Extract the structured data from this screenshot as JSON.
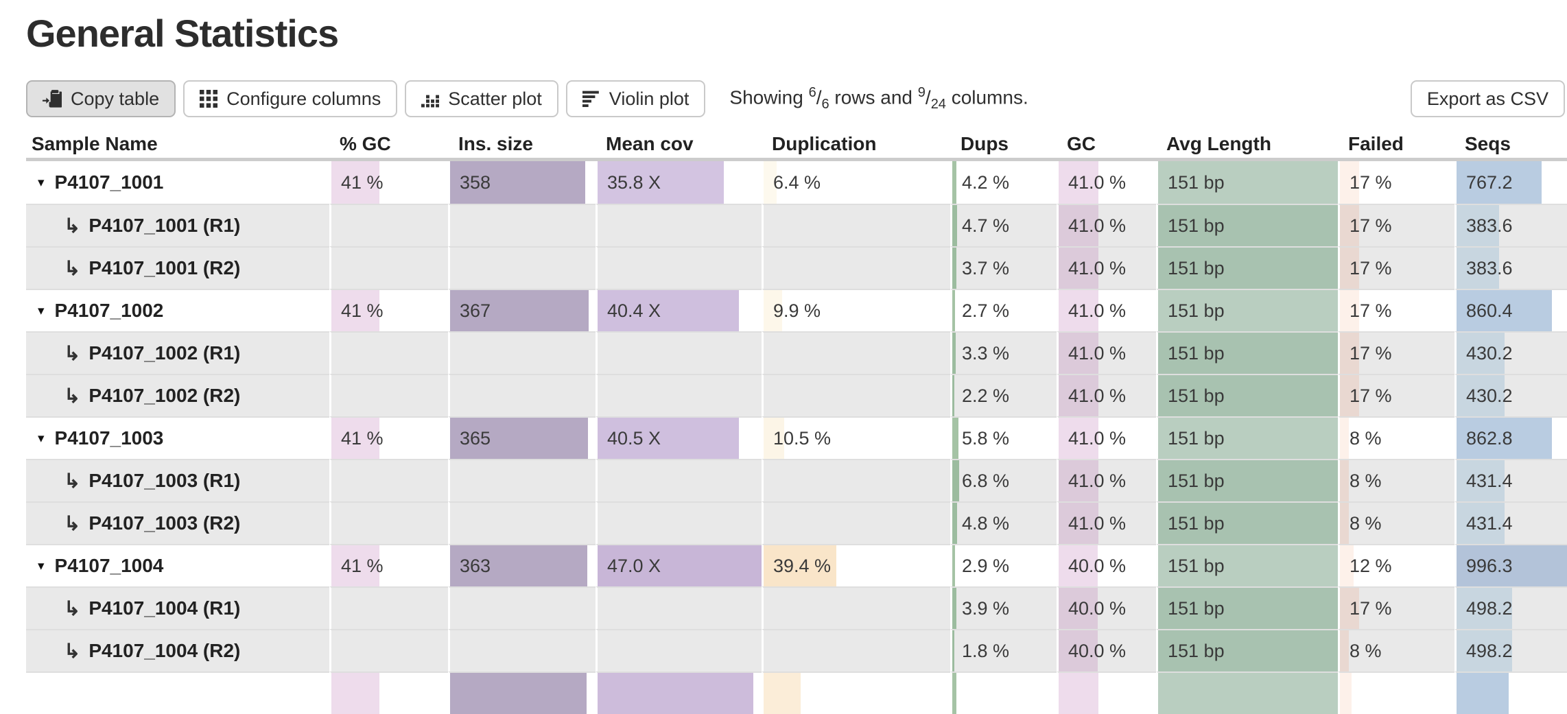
{
  "title": "General Statistics",
  "toolbar": {
    "copy_table": "Copy table",
    "configure_columns": "Configure columns",
    "scatter_plot": "Scatter plot",
    "violin_plot": "Violin plot",
    "export_csv": "Export as CSV",
    "showing": {
      "prefix": "Showing ",
      "rows_shown": "6",
      "rows_total": "6",
      "middle": " rows and ",
      "cols_shown": "9",
      "cols_total": "24",
      "suffix": " columns."
    }
  },
  "columns": [
    {
      "id": "sample",
      "label": "Sample Name"
    },
    {
      "id": "pct_gc",
      "label": "% GC"
    },
    {
      "id": "ins_size",
      "label": "Ins. size"
    },
    {
      "id": "mean_cov",
      "label": "Mean cov"
    },
    {
      "id": "duplication",
      "label": "Duplication"
    },
    {
      "id": "dups",
      "label": "Dups"
    },
    {
      "id": "gc",
      "label": "GC"
    },
    {
      "id": "avg_length",
      "label": "Avg Length"
    },
    {
      "id": "failed",
      "label": "Failed"
    },
    {
      "id": "seqs",
      "label": "Seqs"
    }
  ],
  "rows": [
    {
      "type": "main",
      "sample": "P4107_1001",
      "cells": {
        "pct_gc": {
          "text": "41 %",
          "bar": 41,
          "color": "#eedcec"
        },
        "ins_size": {
          "text": "358",
          "bar": 93,
          "color": "#b5a9c3"
        },
        "mean_cov": {
          "text": "35.8 X",
          "bar": 77,
          "color": "#d3c4e1"
        },
        "duplication": {
          "text": "6.4 %",
          "bar": 7,
          "color": "#fdf9ee"
        },
        "dups": {
          "text": "4.2 %",
          "bar": 4.2,
          "color": "#a5c3a5"
        },
        "gc": {
          "text": "41.0 %",
          "bar": 41,
          "color": "#eedcec"
        },
        "avg_length": {
          "text": "151 bp",
          "bar": 100,
          "color": "#b9cec0"
        },
        "failed": {
          "text": "17 %",
          "bar": 17,
          "color": "#fdf1ea"
        },
        "seqs": {
          "text": "767.2",
          "bar": 77,
          "color": "#b9cce1"
        }
      }
    },
    {
      "type": "sub",
      "sample": "P4107_1001 (R1)",
      "cells": {
        "dups": {
          "text": "4.7 %",
          "bar": 4.7,
          "color": "#9cbc9f"
        },
        "gc": {
          "text": "41.0 %",
          "bar": 41,
          "color": "#dccada"
        },
        "avg_length": {
          "text": "151 bp",
          "bar": 100,
          "color": "#a8c2b0"
        },
        "failed": {
          "text": "17 %",
          "bar": 17,
          "color": "#e9d8d1"
        },
        "seqs": {
          "text": "383.6",
          "bar": 38.5,
          "color": "#c8d6e0"
        }
      }
    },
    {
      "type": "sub",
      "sample": "P4107_1001 (R2)",
      "cells": {
        "dups": {
          "text": "3.7 %",
          "bar": 3.7,
          "color": "#9cbc9f"
        },
        "gc": {
          "text": "41.0 %",
          "bar": 41,
          "color": "#dccada"
        },
        "avg_length": {
          "text": "151 bp",
          "bar": 100,
          "color": "#a8c2b0"
        },
        "failed": {
          "text": "17 %",
          "bar": 17,
          "color": "#e9d8d1"
        },
        "seqs": {
          "text": "383.6",
          "bar": 38.5,
          "color": "#c8d6e0"
        }
      }
    },
    {
      "type": "main",
      "sample": "P4107_1002",
      "cells": {
        "pct_gc": {
          "text": "41 %",
          "bar": 41,
          "color": "#eedcec"
        },
        "ins_size": {
          "text": "367",
          "bar": 95.3,
          "color": "#b5a9c3"
        },
        "mean_cov": {
          "text": "40.4 X",
          "bar": 86,
          "color": "#cfbfde"
        },
        "duplication": {
          "text": "9.9 %",
          "bar": 10,
          "color": "#fdf7ea"
        },
        "dups": {
          "text": "2.7 %",
          "bar": 2.7,
          "color": "#a5c3a5"
        },
        "gc": {
          "text": "41.0 %",
          "bar": 41,
          "color": "#eedcec"
        },
        "avg_length": {
          "text": "151 bp",
          "bar": 100,
          "color": "#b9cec0"
        },
        "failed": {
          "text": "17 %",
          "bar": 17,
          "color": "#fdf1ea"
        },
        "seqs": {
          "text": "860.4",
          "bar": 86.3,
          "color": "#b9cce1"
        }
      }
    },
    {
      "type": "sub",
      "sample": "P4107_1002 (R1)",
      "cells": {
        "dups": {
          "text": "3.3 %",
          "bar": 3.3,
          "color": "#9cbc9f"
        },
        "gc": {
          "text": "41.0 %",
          "bar": 41,
          "color": "#dccada"
        },
        "avg_length": {
          "text": "151 bp",
          "bar": 100,
          "color": "#a8c2b0"
        },
        "failed": {
          "text": "17 %",
          "bar": 17,
          "color": "#e9d8d1"
        },
        "seqs": {
          "text": "430.2",
          "bar": 43.2,
          "color": "#c8d6e0"
        }
      }
    },
    {
      "type": "sub",
      "sample": "P4107_1002 (R2)",
      "cells": {
        "dups": {
          "text": "2.2 %",
          "bar": 2.2,
          "color": "#9cbc9f"
        },
        "gc": {
          "text": "41.0 %",
          "bar": 41,
          "color": "#dccada"
        },
        "avg_length": {
          "text": "151 bp",
          "bar": 100,
          "color": "#a8c2b0"
        },
        "failed": {
          "text": "17 %",
          "bar": 17,
          "color": "#e9d8d1"
        },
        "seqs": {
          "text": "430.2",
          "bar": 43.2,
          "color": "#c8d6e0"
        }
      }
    },
    {
      "type": "main",
      "sample": "P4107_1003",
      "cells": {
        "pct_gc": {
          "text": "41 %",
          "bar": 41,
          "color": "#eedcec"
        },
        "ins_size": {
          "text": "365",
          "bar": 94.8,
          "color": "#b5a9c3"
        },
        "mean_cov": {
          "text": "40.5 X",
          "bar": 86,
          "color": "#cfbfde"
        },
        "duplication": {
          "text": "10.5 %",
          "bar": 11,
          "color": "#fcf5e7"
        },
        "dups": {
          "text": "5.8 %",
          "bar": 5.8,
          "color": "#a5c3a5"
        },
        "gc": {
          "text": "41.0 %",
          "bar": 41,
          "color": "#eedcec"
        },
        "avg_length": {
          "text": "151 bp",
          "bar": 100,
          "color": "#b9cec0"
        },
        "failed": {
          "text": "8 %",
          "bar": 8,
          "color": "#fdf1ea"
        },
        "seqs": {
          "text": "862.8",
          "bar": 86.6,
          "color": "#b9cce1"
        }
      }
    },
    {
      "type": "sub",
      "sample": "P4107_1003 (R1)",
      "cells": {
        "dups": {
          "text": "6.8 %",
          "bar": 6.8,
          "color": "#9cbc9f"
        },
        "gc": {
          "text": "41.0 %",
          "bar": 41,
          "color": "#dccada"
        },
        "avg_length": {
          "text": "151 bp",
          "bar": 100,
          "color": "#a8c2b0"
        },
        "failed": {
          "text": "8 %",
          "bar": 8,
          "color": "#e9d8d1"
        },
        "seqs": {
          "text": "431.4",
          "bar": 43.3,
          "color": "#c8d6e0"
        }
      }
    },
    {
      "type": "sub",
      "sample": "P4107_1003 (R2)",
      "cells": {
        "dups": {
          "text": "4.8 %",
          "bar": 4.8,
          "color": "#9cbc9f"
        },
        "gc": {
          "text": "41.0 %",
          "bar": 41,
          "color": "#dccada"
        },
        "avg_length": {
          "text": "151 bp",
          "bar": 100,
          "color": "#a8c2b0"
        },
        "failed": {
          "text": "8 %",
          "bar": 8,
          "color": "#e9d8d1"
        },
        "seqs": {
          "text": "431.4",
          "bar": 43.3,
          "color": "#c8d6e0"
        }
      }
    },
    {
      "type": "main",
      "sample": "P4107_1004",
      "cells": {
        "pct_gc": {
          "text": "41 %",
          "bar": 41,
          "color": "#eedcec"
        },
        "ins_size": {
          "text": "363",
          "bar": 94.3,
          "color": "#b5a9c3"
        },
        "mean_cov": {
          "text": "47.0 X",
          "bar": 100,
          "color": "#c8b6d7"
        },
        "duplication": {
          "text": "39.4 %",
          "bar": 39,
          "color": "#f9e5c9"
        },
        "dups": {
          "text": "2.9 %",
          "bar": 2.9,
          "color": "#a5c3a5"
        },
        "gc": {
          "text": "40.0 %",
          "bar": 40,
          "color": "#eedcec"
        },
        "avg_length": {
          "text": "151 bp",
          "bar": 100,
          "color": "#b9cec0"
        },
        "failed": {
          "text": "12 %",
          "bar": 12,
          "color": "#fdf1ea"
        },
        "seqs": {
          "text": "996.3",
          "bar": 100,
          "color": "#b3c3d9"
        }
      }
    },
    {
      "type": "sub",
      "sample": "P4107_1004 (R1)",
      "cells": {
        "dups": {
          "text": "3.9 %",
          "bar": 3.9,
          "color": "#9cbc9f"
        },
        "gc": {
          "text": "40.0 %",
          "bar": 40,
          "color": "#dccada"
        },
        "avg_length": {
          "text": "151 bp",
          "bar": 100,
          "color": "#a8c2b0"
        },
        "failed": {
          "text": "17 %",
          "bar": 17,
          "color": "#e9d8d1"
        },
        "seqs": {
          "text": "498.2",
          "bar": 50,
          "color": "#c8d6e0"
        }
      }
    },
    {
      "type": "sub",
      "sample": "P4107_1004 (R2)",
      "cells": {
        "dups": {
          "text": "1.8 %",
          "bar": 1.8,
          "color": "#9cbc9f"
        },
        "gc": {
          "text": "40.0 %",
          "bar": 40,
          "color": "#dccada"
        },
        "avg_length": {
          "text": "151 bp",
          "bar": 100,
          "color": "#a8c2b0"
        },
        "failed": {
          "text": "8 %",
          "bar": 8,
          "color": "#e9d8d1"
        },
        "seqs": {
          "text": "498.2",
          "bar": 50,
          "color": "#c8d6e0"
        }
      }
    },
    {
      "type": "main",
      "sample": "",
      "cells": {
        "pct_gc": {
          "text": "",
          "bar": 41,
          "color": "#eedcec"
        },
        "ins_size": {
          "text": "",
          "bar": 94,
          "color": "#b5a9c3"
        },
        "mean_cov": {
          "text": "",
          "bar": 95,
          "color": "#cdbcdb"
        },
        "duplication": {
          "text": "",
          "bar": 20,
          "color": "#fbedd8"
        },
        "dups": {
          "text": "",
          "bar": 4,
          "color": "#a5c3a5"
        },
        "gc": {
          "text": "",
          "bar": 41,
          "color": "#eedcec"
        },
        "avg_length": {
          "text": "",
          "bar": 100,
          "color": "#b9cec0"
        },
        "failed": {
          "text": "",
          "bar": 10,
          "color": "#fdf1ea"
        },
        "seqs": {
          "text": "",
          "bar": 47,
          "color": "#b9cce1"
        }
      }
    }
  ]
}
